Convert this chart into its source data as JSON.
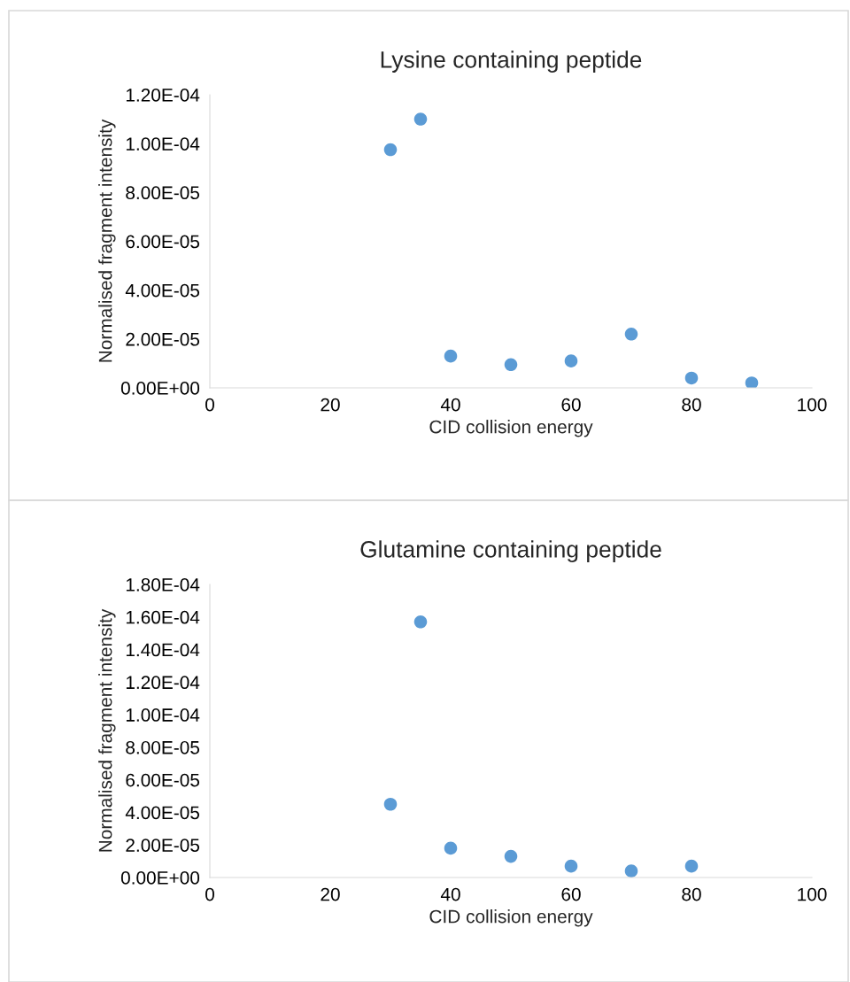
{
  "chart_data": [
    {
      "type": "scatter",
      "title": "Lysine containing peptide",
      "xlabel": "CID collision energy",
      "ylabel": "Normalised fragment intensity",
      "x": [
        30,
        35,
        40,
        50,
        60,
        70,
        80,
        90
      ],
      "values": [
        9.75e-05,
        0.00011,
        1.3e-05,
        9.5e-06,
        1.1e-05,
        2.2e-05,
        4e-06,
        2e-06
      ],
      "color": "#5b9bd5",
      "marker": "circle",
      "xlim": [
        0,
        100
      ],
      "xticks": [
        0,
        20,
        40,
        60,
        80,
        100
      ],
      "ylim": [
        0,
        0.00012
      ],
      "yticks": [
        {
          "value": 0,
          "label": "0.00E+00"
        },
        {
          "value": 2e-05,
          "label": "2.00E-05"
        },
        {
          "value": 4e-05,
          "label": "4.00E-05"
        },
        {
          "value": 6e-05,
          "label": "6.00E-05"
        },
        {
          "value": 8e-05,
          "label": "8.00E-05"
        },
        {
          "value": 0.0001,
          "label": "1.00E-04"
        },
        {
          "value": 0.00012,
          "label": "1.20E-04"
        }
      ],
      "grid": false,
      "legend": false
    },
    {
      "type": "scatter",
      "title": "Glutamine containing peptide",
      "xlabel": "CID collision energy",
      "ylabel": "Normalised fragment intensity",
      "x": [
        30,
        35,
        40,
        50,
        60,
        70,
        80
      ],
      "values": [
        4.5e-05,
        0.000157,
        1.8e-05,
        1.3e-05,
        7e-06,
        4e-06,
        7e-06
      ],
      "color": "#5b9bd5",
      "marker": "circle",
      "xlim": [
        0,
        100
      ],
      "xticks": [
        0,
        20,
        40,
        60,
        80,
        100
      ],
      "ylim": [
        0,
        0.00018
      ],
      "yticks": [
        {
          "value": 0,
          "label": "0.00E+00"
        },
        {
          "value": 2e-05,
          "label": "2.00E-05"
        },
        {
          "value": 4e-05,
          "label": "4.00E-05"
        },
        {
          "value": 6e-05,
          "label": "6.00E-05"
        },
        {
          "value": 8e-05,
          "label": "8.00E-05"
        },
        {
          "value": 0.0001,
          "label": "1.00E-04"
        },
        {
          "value": 0.00012,
          "label": "1.20E-04"
        },
        {
          "value": 0.00014,
          "label": "1.40E-04"
        },
        {
          "value": 0.00016,
          "label": "1.60E-04"
        },
        {
          "value": 0.00018,
          "label": "1.80E-04"
        }
      ],
      "grid": false,
      "legend": false
    }
  ]
}
